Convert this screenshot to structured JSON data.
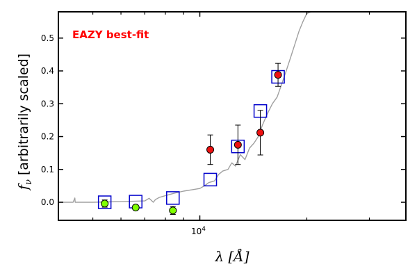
{
  "chart_data": {
    "type": "scatter",
    "title": "",
    "annotation": {
      "text": "EAZY best-fit",
      "color": "#ff0000"
    },
    "xlabel": "λ [Å]",
    "ylabel": "f_ν [arbitrarily scaled]",
    "ylabel_parts": {
      "symbol": "f",
      "subscript": "ν",
      "text": "[arbitrarily scaled]"
    },
    "xscale": "log",
    "xlim": [
      4000,
      38000
    ],
    "ylim": [
      -0.055,
      0.58
    ],
    "x_ticks": [
      {
        "value": 10000,
        "label": "10",
        "exponent": "4"
      }
    ],
    "x_minor_ticks": [
      5000,
      6000,
      7000,
      8000,
      9000,
      20000,
      30000
    ],
    "y_ticks": [
      {
        "value": 0.0,
        "label": "0.0"
      },
      {
        "value": 0.1,
        "label": "0.1"
      },
      {
        "value": 0.2,
        "label": "0.2"
      },
      {
        "value": 0.3,
        "label": "0.3"
      },
      {
        "value": 0.4,
        "label": "0.4"
      },
      {
        "value": 0.5,
        "label": "0.5"
      }
    ],
    "grid": false,
    "series": [
      {
        "type": "line",
        "color": "#a0a0a0",
        "x": [
          4000,
          4400,
          4450,
          4460,
          4600,
          5000,
          5500,
          6000,
          6500,
          7000,
          7200,
          7400,
          7500,
          7700,
          8000,
          8500,
          9000,
          9500,
          10000,
          10300,
          10600,
          11000,
          11300,
          11600,
          12000,
          12300,
          12600,
          13000,
          13400,
          13800,
          14200,
          14600,
          15000,
          15500,
          16000,
          16500,
          17000,
          17500,
          18000,
          18500,
          19000,
          19500,
          20000,
          20600,
          21000
        ],
        "y": [
          0.0,
          0.0,
          0.013,
          0.0,
          0.0,
          0.0,
          0.001,
          0.002,
          0.003,
          0.004,
          0.012,
          0.0,
          0.008,
          0.015,
          0.02,
          0.028,
          0.034,
          0.038,
          0.042,
          0.05,
          0.06,
          0.065,
          0.085,
          0.095,
          0.1,
          0.12,
          0.11,
          0.145,
          0.13,
          0.165,
          0.18,
          0.2,
          0.235,
          0.27,
          0.3,
          0.32,
          0.36,
          0.4,
          0.44,
          0.48,
          0.52,
          0.55,
          0.575,
          0.58,
          0.58
        ]
      },
      {
        "type": "open-square",
        "color": "#0000cc",
        "x": [
          5400,
          6600,
          8400,
          10700,
          12800,
          14800,
          16600
        ],
        "y": [
          0.0,
          0.002,
          0.013,
          0.069,
          0.17,
          0.278,
          0.382
        ]
      },
      {
        "type": "circle-errorbar",
        "color": "#7fff00",
        "x": [
          5400,
          6600,
          8400
        ],
        "y": [
          -0.004,
          -0.016,
          -0.025
        ],
        "yerr": [
          0.011,
          0.006,
          0.012
        ]
      },
      {
        "type": "circle-errorbar",
        "color": "#ee1111",
        "x": [
          10700,
          12800,
          14800,
          16600
        ],
        "y": [
          0.16,
          0.175,
          0.212,
          0.388
        ],
        "yerr": [
          0.045,
          0.06,
          0.068,
          0.035
        ]
      }
    ]
  }
}
